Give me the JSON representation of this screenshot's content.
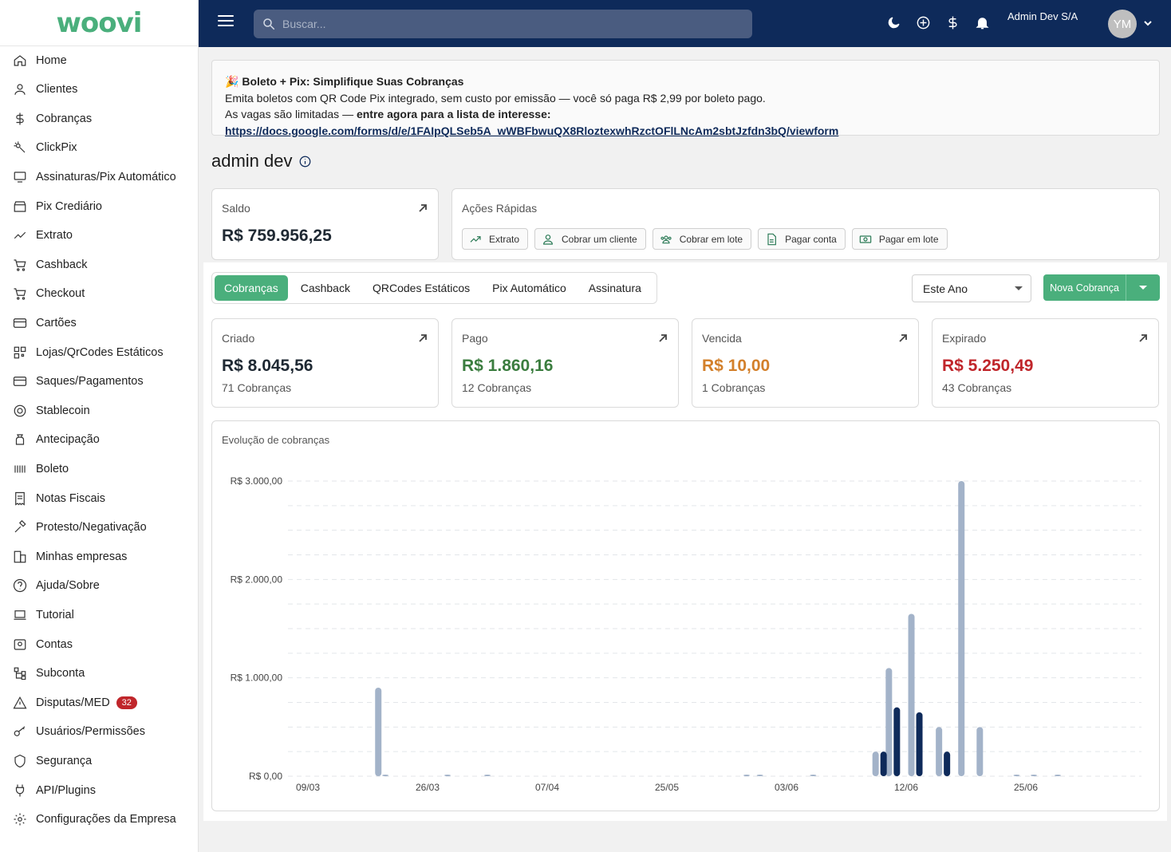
{
  "sidebar": {
    "logo": "woovi",
    "items": [
      {
        "label": "Home",
        "icon": "home-icon"
      },
      {
        "label": "Clientes",
        "icon": "person-icon"
      },
      {
        "label": "Cobranças",
        "icon": "dollar-icon"
      },
      {
        "label": "ClickPix",
        "icon": "click-icon"
      },
      {
        "label": "Assinaturas/Pix Automático",
        "icon": "subscription-icon"
      },
      {
        "label": "Pix Crediário",
        "icon": "store-icon"
      },
      {
        "label": "Extrato",
        "icon": "trending-up-icon"
      },
      {
        "label": "Cashback",
        "icon": "cart-plus-icon"
      },
      {
        "label": "Checkout",
        "icon": "cart-icon"
      },
      {
        "label": "Cartões",
        "icon": "credit-card-icon"
      },
      {
        "label": "Lojas/QrCodes Estáticos",
        "icon": "qrcode-icon"
      },
      {
        "label": "Saques/Pagamentos",
        "icon": "payment-icon"
      },
      {
        "label": "Stablecoin",
        "icon": "coin-icon"
      },
      {
        "label": "Antecipação",
        "icon": "money-bag-icon"
      },
      {
        "label": "Boleto",
        "icon": "barcode-icon"
      },
      {
        "label": "Notas Fiscais",
        "icon": "receipt-icon"
      },
      {
        "label": "Protesto/Negativação",
        "icon": "gavel-icon"
      },
      {
        "label": "Minhas empresas",
        "icon": "building-icon"
      },
      {
        "label": "Ajuda/Sobre",
        "icon": "help-icon"
      },
      {
        "label": "Tutorial",
        "icon": "laptop-icon"
      },
      {
        "label": "Contas",
        "icon": "account-icon"
      },
      {
        "label": "Subconta",
        "icon": "hierarchy-icon"
      },
      {
        "label": "Disputas/MED",
        "icon": "warning-icon",
        "badge": "32"
      },
      {
        "label": "Usuários/Permissões",
        "icon": "key-icon"
      },
      {
        "label": "Segurança",
        "icon": "shield-icon"
      },
      {
        "label": "API/Plugins",
        "icon": "plug-icon"
      },
      {
        "label": "Configurações da Empresa",
        "icon": "gear-icon"
      }
    ]
  },
  "header": {
    "search_placeholder": "Buscar...",
    "icons": [
      "moon-icon",
      "add-circle-icon",
      "dollar-icon",
      "bell-icon"
    ],
    "company": "Admin Dev S/A",
    "avatar_initials": "YM"
  },
  "banner": {
    "emoji": "🎉",
    "title": "Boleto + Pix: Simplifique Suas Cobranças",
    "line1": "Emita boletos com QR Code Pix integrado, sem custo por emissão — você só paga R$ 2,99 por boleto pago.",
    "line2_prefix": "As vagas são limitadas — ",
    "line2_bold": "entre agora para a lista de interesse: ",
    "link": "https://docs.google.com/forms/d/e/1FAIpQLSeb5A_wWBFbwuQX8RloztexwhRzctOFlLNcAm2sbtJzfdn3bQ/viewform"
  },
  "page_title": "admin dev",
  "saldo": {
    "label": "Saldo",
    "value": "R$ 759.956,25"
  },
  "acoes": {
    "label": "Ações Rápidas",
    "buttons": [
      {
        "label": "Extrato",
        "icon": "trending-up-icon"
      },
      {
        "label": "Cobrar um cliente",
        "icon": "person-icon"
      },
      {
        "label": "Cobrar em lote",
        "icon": "group-icon"
      },
      {
        "label": "Pagar conta",
        "icon": "document-icon"
      },
      {
        "label": "Pagar em lote",
        "icon": "cash-icon"
      }
    ]
  },
  "tabs": [
    "Cobranças",
    "Cashback",
    "QRCodes Estáticos",
    "Pix Automático",
    "Assinatura"
  ],
  "active_tab": "Cobranças",
  "period": "Este Ano",
  "nova_cobranca": "Nova Cobrança",
  "kpis": [
    {
      "label": "Criado",
      "value": "R$ 8.045,56",
      "sub": "71 Cobranças",
      "color": "#1f2933"
    },
    {
      "label": "Pago",
      "value": "R$ 1.860,16",
      "sub": "12 Cobranças",
      "color": "#3b7d3f"
    },
    {
      "label": "Vencida",
      "value": "R$ 10,00",
      "sub": "1 Cobranças",
      "color": "#d3802b"
    },
    {
      "label": "Expirado",
      "value": "R$ 5.250,49",
      "sub": "43 Cobranças",
      "color": "#c0262b"
    }
  ],
  "colors": {
    "brand": "#4aaf7c",
    "header": "#0e2a5a",
    "created_bar": "#a3b3c9",
    "paid_bar": "#0e2a5a"
  },
  "chart_data": {
    "type": "bar",
    "title": "Evolução de cobranças",
    "y_ticks": [
      "R$ 3.000,00",
      "R$ 2.000,00",
      "R$ 1.000,00",
      "R$ 0,00"
    ],
    "x_ticks": [
      "09/03",
      "26/03",
      "07/04",
      "25/05",
      "03/06",
      "12/06",
      "25/06"
    ],
    "ylim": [
      0,
      3000
    ],
    "grid": true,
    "series": [
      {
        "values": [
          {
            "x": "19/03",
            "y": 900
          },
          {
            "x": "20/03",
            "y": 15
          },
          {
            "x": "28/03",
            "y": 8
          },
          {
            "x": "01/04",
            "y": 10
          },
          {
            "x": "31/05",
            "y": 3
          },
          {
            "x": "01/06",
            "y": 5
          },
          {
            "x": "05/06",
            "y": 3
          },
          {
            "x": "10/06",
            "y": 250
          },
          {
            "x": "11/06",
            "y": 1100
          },
          {
            "x": "13/06",
            "y": 1650
          },
          {
            "x": "16/06",
            "y": 500
          },
          {
            "x": "18/06",
            "y": 3000
          },
          {
            "x": "20/06",
            "y": 500
          },
          {
            "x": "24/06",
            "y": 3
          },
          {
            "x": "26/06",
            "y": 5
          },
          {
            "x": "29/06",
            "y": 5
          }
        ]
      },
      {
        "values": [
          {
            "x": "10/06",
            "y": 250
          },
          {
            "x": "11/06",
            "y": 700
          },
          {
            "x": "13/06",
            "y": 650
          },
          {
            "x": "16/06",
            "y": 250
          }
        ]
      }
    ]
  }
}
